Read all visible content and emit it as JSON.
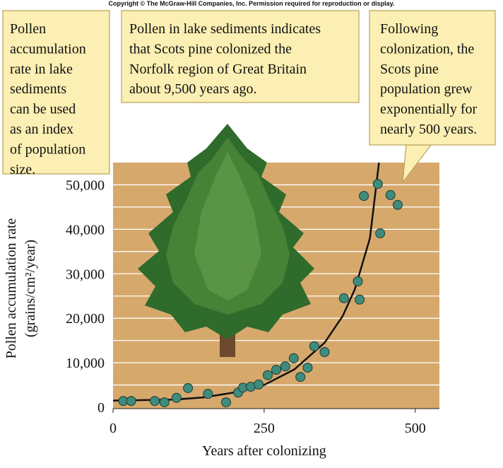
{
  "copyright": "Copyright © The McGraw-Hill Companies, Inc. Permission required for reproduction or display.",
  "annotations": [
    {
      "lines": [
        "Pollen",
        "accumulation",
        "rate in lake",
        "sediments",
        "can be used",
        "as an index",
        "of population",
        "size."
      ]
    },
    {
      "lines": [
        "Pollen in lake sediments indicates",
        "that Scots pine colonized the",
        "Norfolk region of Great Britain",
        "about 9,500 years ago."
      ]
    },
    {
      "lines": [
        "Following",
        "colonization, the",
        "Scots pine",
        "population grew",
        "exponentially for",
        "nearly 500 years."
      ]
    }
  ],
  "chart_data": {
    "type": "scatter",
    "x_label": "Years after colonizing",
    "y_label": [
      "Pollen accumulation rate",
      "(grains/cm²/year)"
    ],
    "xlim": [
      0,
      540
    ],
    "ylim": [
      0,
      55000
    ],
    "xticks": [
      0,
      250,
      500
    ],
    "yticks": [
      0,
      {
        "value": 10000,
        "label": "10,000"
      },
      {
        "value": 20000,
        "label": "20,000"
      },
      {
        "value": 30000,
        "label": "30,000"
      },
      {
        "value": 40000,
        "label": "40,000"
      },
      {
        "value": 50000,
        "label": "50,000"
      }
    ],
    "minor_yticks": [
      5000,
      15000,
      25000,
      35000,
      45000
    ],
    "grid": true,
    "background": "#d6a86c",
    "series": [
      {
        "color": "#3e8c7c",
        "x": [
          17,
          30,
          69,
          85,
          105,
          124,
          157,
          187,
          207,
          215,
          228,
          241,
          256,
          270,
          285,
          299,
          310,
          322,
          333,
          350,
          382,
          405,
          408,
          415,
          438,
          442,
          459,
          471
        ],
        "values": [
          1400,
          1400,
          1400,
          1100,
          2100,
          4300,
          3000,
          1100,
          3300,
          4400,
          4600,
          5100,
          7200,
          8400,
          9200,
          11000,
          6800,
          8900,
          13700,
          12400,
          24500,
          28300,
          24200,
          47500,
          50200,
          39100,
          47700,
          45500
        ]
      },
      {
        "type": "line",
        "color": "#111111",
        "x": [
          0,
          100,
          150,
          200,
          250,
          300,
          350,
          380,
          400,
          425,
          440
        ],
        "values": [
          1500,
          1700,
          2200,
          3300,
          5000,
          8500,
          14500,
          20500,
          26500,
          38000,
          55000
        ]
      }
    ]
  }
}
